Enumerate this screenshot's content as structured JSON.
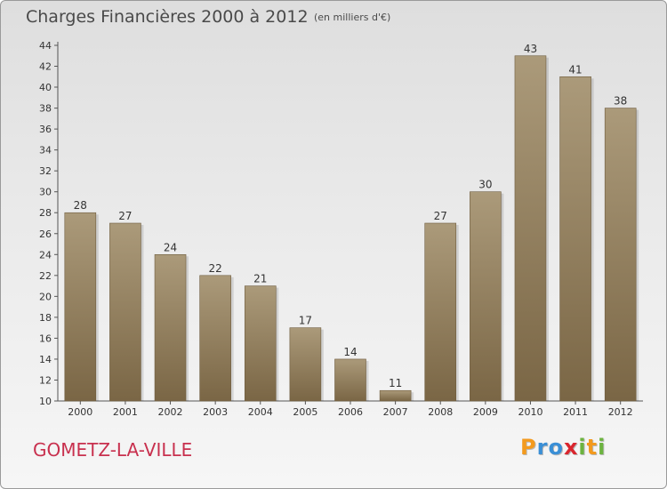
{
  "header": {
    "title": "Charges Financières 2000 à 2012",
    "subtitle": "(en milliers d'€)"
  },
  "footer": {
    "town": "GOMETZ-LA-VILLE",
    "logo": {
      "letters": [
        "P",
        "r",
        "o",
        "x",
        "i",
        "t",
        "i"
      ],
      "colors": [
        "#f39a1e",
        "#3a8fd6",
        "#3a8fd6",
        "#d9262e",
        "#6cb33f",
        "#f39a1e",
        "#6cb33f"
      ]
    }
  },
  "colors": {
    "bar_top": "#ab9a7a",
    "bar_bottom": "#7a6645",
    "title": "#4a4a4a",
    "town": "#c8304e"
  },
  "chart_data": {
    "type": "bar",
    "title": "Charges Financières 2000 à 2012",
    "subtitle": "(en milliers d'€)",
    "categories": [
      "2000",
      "2001",
      "2002",
      "2003",
      "2004",
      "2005",
      "2006",
      "2007",
      "2008",
      "2009",
      "2010",
      "2011",
      "2012"
    ],
    "values": [
      28,
      27,
      24,
      22,
      21,
      17,
      14,
      11,
      27,
      30,
      43,
      41,
      38
    ],
    "ylim": [
      10,
      44
    ],
    "yticks": [
      10,
      12,
      14,
      16,
      18,
      20,
      22,
      24,
      26,
      28,
      30,
      32,
      34,
      36,
      38,
      40,
      42,
      44
    ],
    "grid": false,
    "xlabel": "",
    "ylabel": ""
  }
}
